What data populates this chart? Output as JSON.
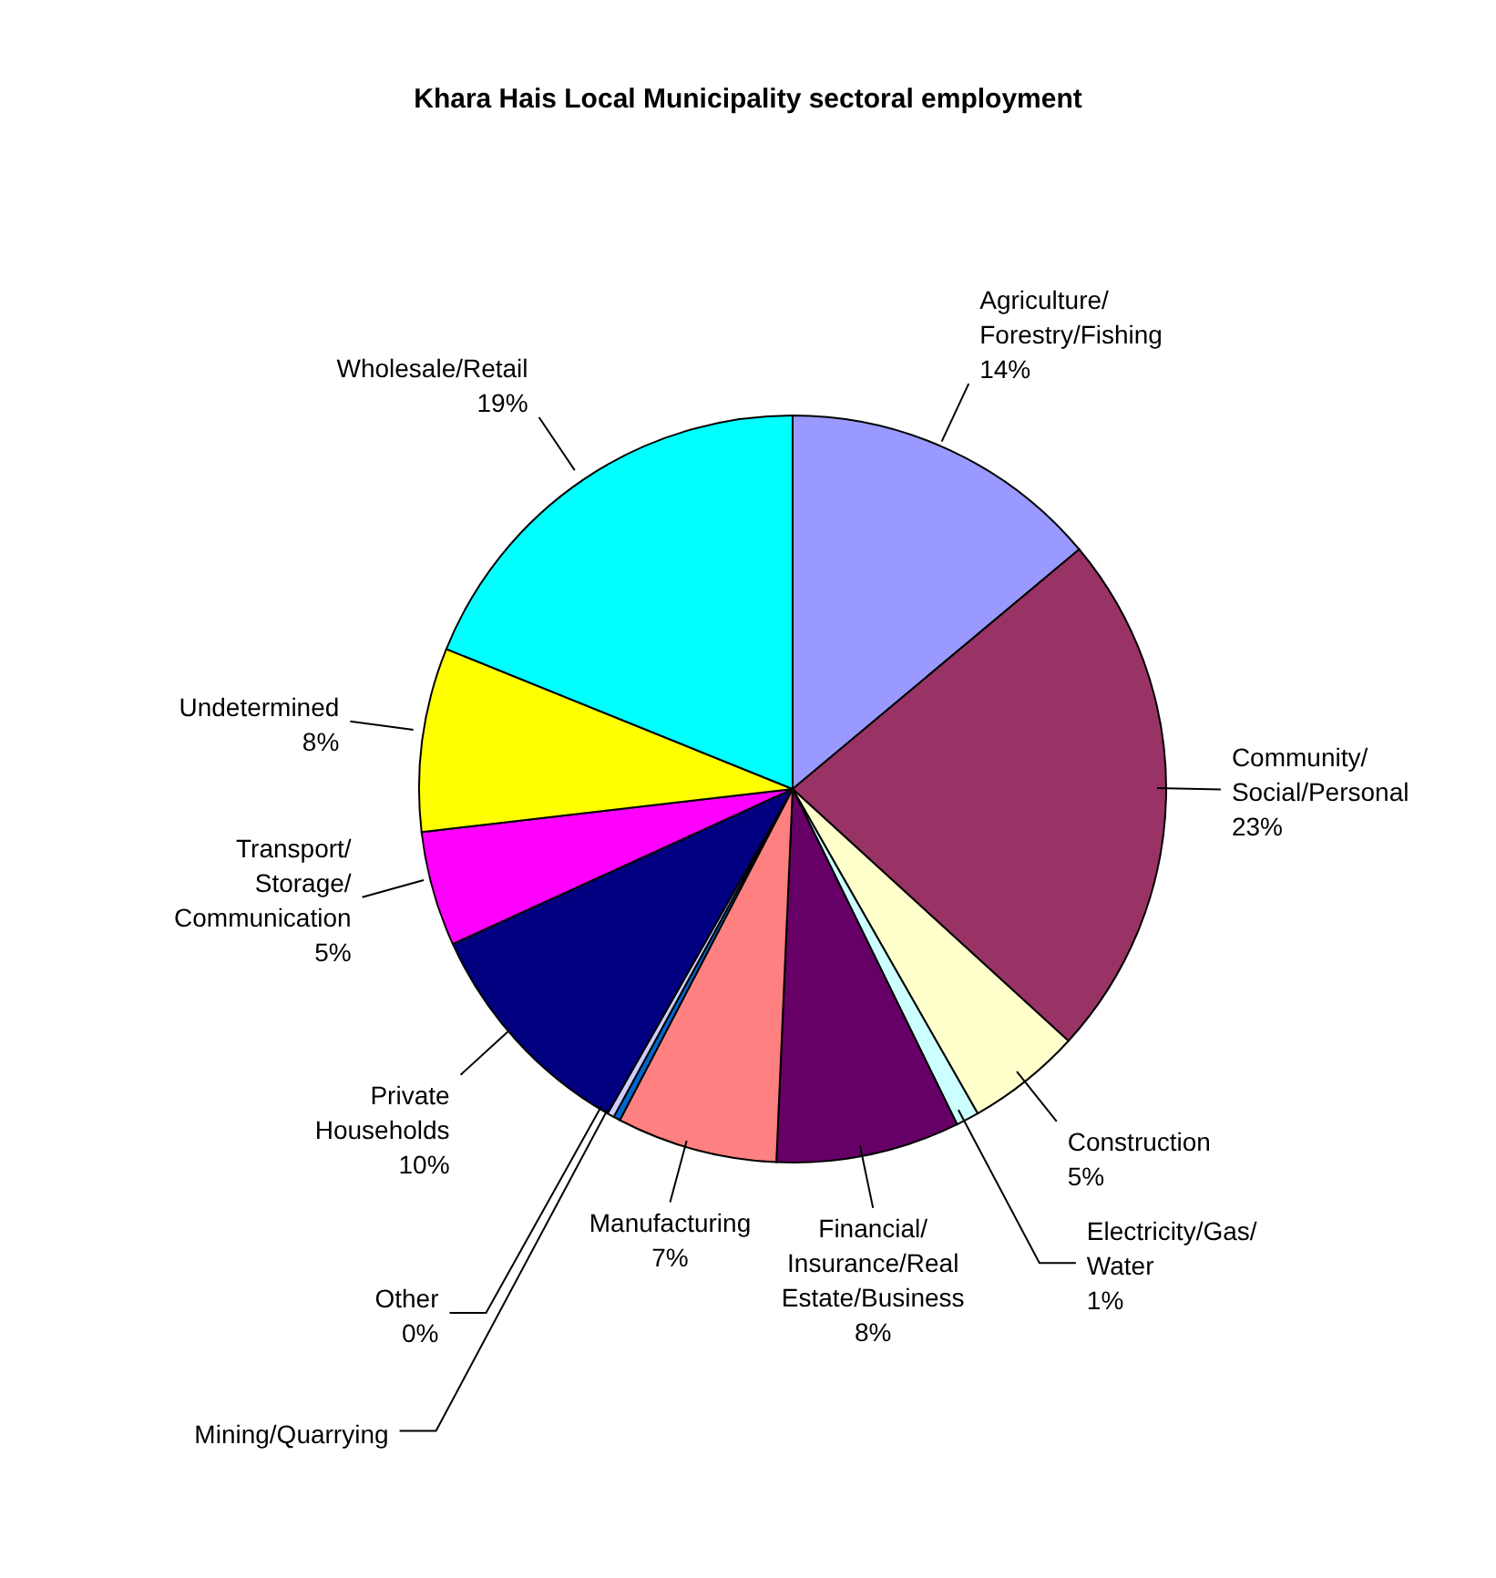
{
  "chart_data": {
    "type": "pie",
    "title": "Khara Hais Local Municipality sectoral employment",
    "categories": [
      "Agriculture/Forestry/Fishing",
      "Community/Social/Personal",
      "Construction",
      "Electricity/Gas/Water",
      "Financial/Insurance/Real Estate/Business",
      "Manufacturing",
      "Mining/Quarrying",
      "Other",
      "Private Households",
      "Transport/Storage/Communication",
      "Undetermined",
      "Wholesale/Retail"
    ],
    "values": [
      14,
      23,
      5,
      1,
      8,
      7,
      0.3,
      0.3,
      10,
      5,
      8,
      19
    ],
    "value_labels": [
      "14%",
      "23%",
      "5%",
      "1%",
      "8%",
      "7%",
      null,
      "0%",
      "10%",
      "5%",
      "8%",
      "19%"
    ],
    "colors": [
      "#9999ff",
      "#993366",
      "#ffffcc",
      "#ccffff",
      "#660066",
      "#ff8080",
      "#0066cc",
      "#ccccff",
      "#000080",
      "#ff00ff",
      "#ffff00",
      "#00ffff"
    ]
  }
}
